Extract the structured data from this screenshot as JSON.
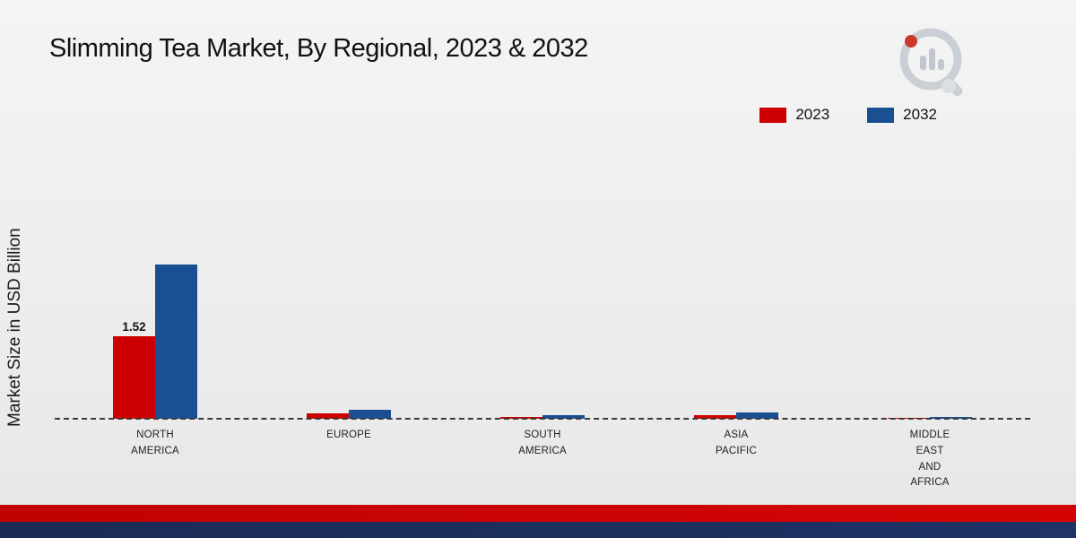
{
  "page": {
    "title": "Slimming Tea Market, By Regional, 2023 & 2032",
    "ylabel": "Market Size in USD Billion"
  },
  "chart_data": {
    "type": "bar",
    "title": "Slimming Tea Market, By Regional, 2023 & 2032",
    "ylabel": "Market Size in USD Billion",
    "xlabel": "",
    "categories": [
      "NORTH AMERICA",
      "EUROPE",
      "SOUTH AMERICA",
      "ASIA PACIFIC",
      "MIDDLE EAST AND AFRICA"
    ],
    "category_lines": [
      [
        "NORTH",
        "AMERICA"
      ],
      [
        "EUROPE"
      ],
      [
        "SOUTH",
        "AMERICA"
      ],
      [
        "ASIA",
        "PACIFIC"
      ],
      [
        "MIDDLE",
        "EAST",
        "AND",
        "AFRICA"
      ]
    ],
    "series": [
      {
        "name": "2023",
        "color": "#cc0000",
        "values": [
          1.52,
          0.1,
          0.03,
          0.07,
          0.02
        ],
        "data_labels": [
          "1.52",
          "",
          "",
          "",
          ""
        ]
      },
      {
        "name": "2032",
        "color": "#1a5091",
        "values": [
          2.85,
          0.16,
          0.07,
          0.12,
          0.03
        ],
        "data_labels": [
          "",
          "",
          "",
          "",
          ""
        ]
      }
    ],
    "ylim": [
      0,
      3.2
    ],
    "baseline_style": "dashed",
    "grid": false,
    "legend_position": "top-right"
  },
  "footer": {
    "red_band_color": "#c00202",
    "navy_band_color": "#1a2c55"
  },
  "logo": {
    "name": "market-research-logo",
    "ring_color": "#c4c9d2",
    "bar_color": "#b9bfc9",
    "accent_color": "#c21807"
  }
}
